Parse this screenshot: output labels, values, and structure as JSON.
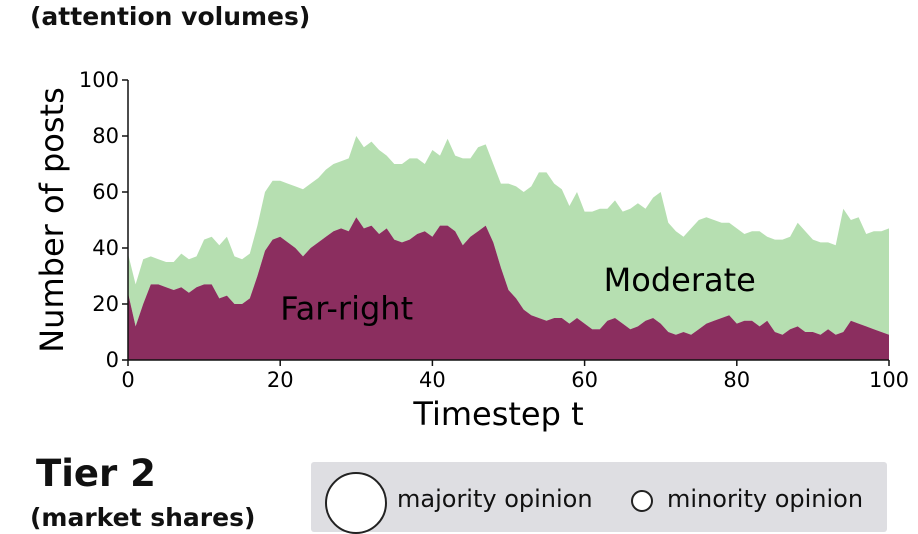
{
  "header": {
    "subtitle": "(attention volumes)"
  },
  "chart_data": {
    "type": "area",
    "stacked": true,
    "xlabel": "Timestep t",
    "ylabel": "Number of posts",
    "xlim": [
      0,
      100
    ],
    "ylim": [
      0,
      100
    ],
    "xticks": [
      0,
      20,
      40,
      60,
      80,
      100
    ],
    "yticks": [
      0,
      20,
      40,
      60,
      80,
      100
    ],
    "grid": false,
    "series": [
      {
        "name": "Far-right",
        "color": "#8b2e5f",
        "x": [
          0,
          1,
          2,
          3,
          4,
          5,
          6,
          7,
          8,
          9,
          10,
          11,
          12,
          13,
          14,
          15,
          16,
          17,
          18,
          19,
          20,
          21,
          22,
          23,
          24,
          25,
          26,
          27,
          28,
          29,
          30,
          31,
          32,
          33,
          34,
          35,
          36,
          37,
          38,
          39,
          40,
          41,
          42,
          43,
          44,
          45,
          46,
          47,
          48,
          49,
          50,
          51,
          52,
          53,
          54,
          55,
          56,
          57,
          58,
          59,
          60,
          61,
          62,
          63,
          64,
          65,
          66,
          67,
          68,
          69,
          70,
          71,
          72,
          73,
          74,
          75,
          76,
          77,
          78,
          79,
          80,
          81,
          82,
          83,
          84,
          85,
          86,
          87,
          88,
          89,
          90,
          91,
          92,
          93,
          94,
          95,
          96,
          97,
          98,
          99,
          100
        ],
        "values": [
          24,
          12,
          20,
          27,
          27,
          26,
          25,
          26,
          24,
          26,
          27,
          27,
          22,
          23,
          20,
          20,
          22,
          30,
          39,
          43,
          44,
          42,
          40,
          37,
          40,
          42,
          44,
          46,
          47,
          46,
          51,
          47,
          48,
          45,
          47,
          43,
          42,
          43,
          45,
          46,
          44,
          48,
          48,
          46,
          41,
          44,
          46,
          48,
          42,
          33,
          25,
          22,
          18,
          16,
          15,
          14,
          15,
          15,
          13,
          15,
          13,
          11,
          11,
          14,
          15,
          13,
          11,
          12,
          14,
          15,
          13,
          10,
          9,
          10,
          9,
          11,
          13,
          14,
          15,
          16,
          13,
          14,
          14,
          12,
          14,
          10,
          9,
          11,
          12,
          10,
          10,
          9,
          11,
          9,
          10,
          14,
          13,
          12,
          11,
          10,
          9
        ]
      },
      {
        "name": "Moderate",
        "color": "#b6dfb1",
        "x": [
          0,
          1,
          2,
          3,
          4,
          5,
          6,
          7,
          8,
          9,
          10,
          11,
          12,
          13,
          14,
          15,
          16,
          17,
          18,
          19,
          20,
          21,
          22,
          23,
          24,
          25,
          26,
          27,
          28,
          29,
          30,
          31,
          32,
          33,
          34,
          35,
          36,
          37,
          38,
          39,
          40,
          41,
          42,
          43,
          44,
          45,
          46,
          47,
          48,
          49,
          50,
          51,
          52,
          53,
          54,
          55,
          56,
          57,
          58,
          59,
          60,
          61,
          62,
          63,
          64,
          65,
          66,
          67,
          68,
          69,
          70,
          71,
          72,
          73,
          74,
          75,
          76,
          77,
          78,
          79,
          80,
          81,
          82,
          83,
          84,
          85,
          86,
          87,
          88,
          89,
          90,
          91,
          92,
          93,
          94,
          95,
          96,
          97,
          98,
          99,
          100
        ],
        "values": [
          14,
          15,
          16,
          10,
          9,
          9,
          10,
          12,
          12,
          11,
          16,
          17,
          19,
          21,
          17,
          16,
          16,
          18,
          21,
          21,
          20,
          21,
          22,
          24,
          23,
          23,
          24,
          24,
          24,
          26,
          29,
          29,
          30,
          30,
          26,
          27,
          28,
          29,
          27,
          24,
          31,
          25,
          31,
          27,
          31,
          28,
          30,
          29,
          28,
          30,
          38,
          40,
          42,
          46,
          52,
          53,
          48,
          46,
          42,
          45,
          40,
          42,
          43,
          40,
          42,
          40,
          43,
          44,
          40,
          43,
          47,
          39,
          37,
          34,
          38,
          39,
          38,
          36,
          34,
          33,
          34,
          31,
          32,
          34,
          30,
          33,
          34,
          33,
          37,
          36,
          33,
          33,
          31,
          32,
          44,
          36,
          38,
          33,
          35,
          36,
          38
        ]
      }
    ]
  }
}
